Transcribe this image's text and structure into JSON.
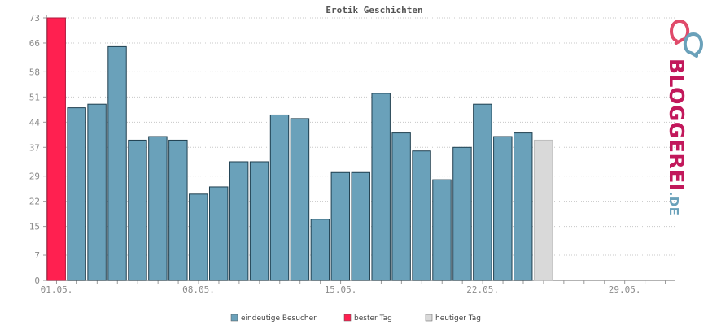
{
  "chart_data": {
    "type": "bar",
    "title": "Erotik Geschichten",
    "xlabel": "",
    "ylabel": "",
    "ylim": [
      0,
      73
    ],
    "yticks": [
      0,
      7,
      15,
      22,
      29,
      37,
      44,
      51,
      58,
      66,
      73
    ],
    "days_in_range": 31,
    "xtick_labels": [
      {
        "day": 1,
        "label": "01.05."
      },
      {
        "day": 8,
        "label": "08.05."
      },
      {
        "day": 15,
        "label": "15.05."
      },
      {
        "day": 22,
        "label": "22.05."
      },
      {
        "day": 29,
        "label": "29.05."
      }
    ],
    "grid": true,
    "legend_position": "bottom",
    "series": [
      {
        "name": "eindeutige Besucher",
        "color": "#6aa1ba"
      },
      {
        "name": "bester Tag",
        "color": "#ff2050"
      },
      {
        "name": "heutiger Tag",
        "color": "#d9d9d9"
      }
    ],
    "bars": [
      {
        "day": 1,
        "value": 73,
        "kind": "bester Tag"
      },
      {
        "day": 2,
        "value": 48,
        "kind": "eindeutige Besucher"
      },
      {
        "day": 3,
        "value": 49,
        "kind": "eindeutige Besucher"
      },
      {
        "day": 4,
        "value": 65,
        "kind": "eindeutige Besucher"
      },
      {
        "day": 5,
        "value": 39,
        "kind": "eindeutige Besucher"
      },
      {
        "day": 6,
        "value": 40,
        "kind": "eindeutige Besucher"
      },
      {
        "day": 7,
        "value": 39,
        "kind": "eindeutige Besucher"
      },
      {
        "day": 8,
        "value": 24,
        "kind": "eindeutige Besucher"
      },
      {
        "day": 9,
        "value": 26,
        "kind": "eindeutige Besucher"
      },
      {
        "day": 10,
        "value": 33,
        "kind": "eindeutige Besucher"
      },
      {
        "day": 11,
        "value": 33,
        "kind": "eindeutige Besucher"
      },
      {
        "day": 12,
        "value": 46,
        "kind": "eindeutige Besucher"
      },
      {
        "day": 13,
        "value": 45,
        "kind": "eindeutige Besucher"
      },
      {
        "day": 14,
        "value": 17,
        "kind": "eindeutige Besucher"
      },
      {
        "day": 15,
        "value": 30,
        "kind": "eindeutige Besucher"
      },
      {
        "day": 16,
        "value": 30,
        "kind": "eindeutige Besucher"
      },
      {
        "day": 17,
        "value": 52,
        "kind": "eindeutige Besucher"
      },
      {
        "day": 18,
        "value": 41,
        "kind": "eindeutige Besucher"
      },
      {
        "day": 19,
        "value": 36,
        "kind": "eindeutige Besucher"
      },
      {
        "day": 20,
        "value": 28,
        "kind": "eindeutige Besucher"
      },
      {
        "day": 21,
        "value": 37,
        "kind": "eindeutige Besucher"
      },
      {
        "day": 22,
        "value": 49,
        "kind": "eindeutige Besucher"
      },
      {
        "day": 23,
        "value": 40,
        "kind": "eindeutige Besucher"
      },
      {
        "day": 24,
        "value": 41,
        "kind": "eindeutige Besucher"
      },
      {
        "day": 25,
        "value": 39,
        "kind": "heutiger Tag"
      }
    ]
  },
  "logo": {
    "text_main": "BLOGGEREI",
    "text_suffix": ".DE",
    "color_main": "#c2185b",
    "color_suffix": "#6aa1ba"
  },
  "colors": {
    "bar_stroke": "#1f3f4f",
    "grid": "#c8c8c8",
    "axis": "#9a9a9a"
  }
}
